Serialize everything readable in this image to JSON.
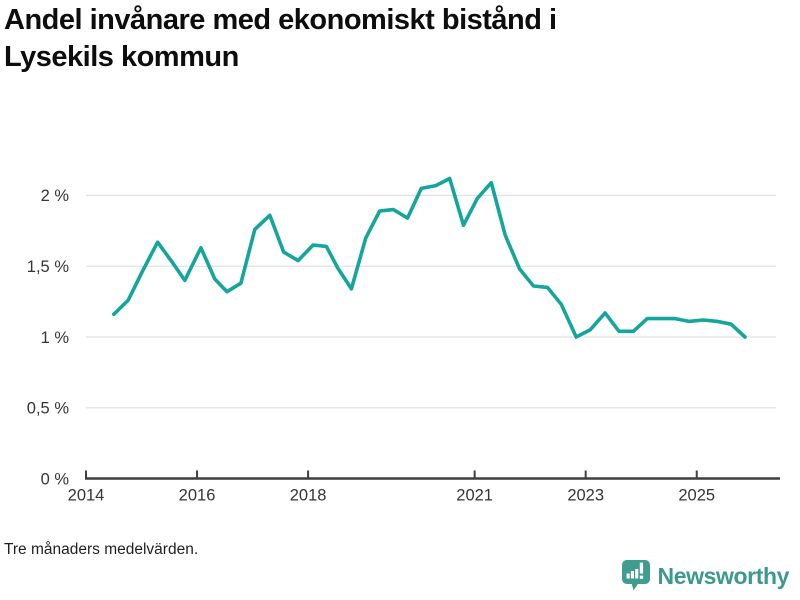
{
  "page": {
    "title": "Andel invånare med ekonomiskt bistånd i Lysekils kommun",
    "footnote": "Tre månaders medelvärden."
  },
  "branding": {
    "name": "Newsworthy",
    "icon": "newsworthy-pin-barchart-icon",
    "color": "#3b9a8c"
  },
  "colors": {
    "line": "#14a59d",
    "grid": "#e2e2e2",
    "axis": "#3f3f3f",
    "tick_text": "#353535",
    "title_text": "#0d0d0d"
  },
  "chart_data": {
    "type": "line",
    "title": "Andel invånare med ekonomiskt bistånd i Lysekils kommun",
    "xlabel": "",
    "ylabel": "",
    "legend": "none",
    "grid": true,
    "xlim": [
      2014,
      2026.5
    ],
    "ylim": [
      0,
      2.3
    ],
    "x_tick_values": [
      2014,
      2016,
      2018,
      2021,
      2023,
      2025
    ],
    "x_tick_labels": [
      "2014",
      "2016",
      "2018",
      "2021",
      "2023",
      "2025"
    ],
    "y_tick_values": [
      0,
      0.5,
      1,
      1.5,
      2
    ],
    "y_tick_labels": [
      "0 %",
      "0,5 %",
      "1 %",
      "1,5 %",
      "2 %"
    ],
    "series": [
      {
        "name": "Andel invånare med ekonomiskt bistånd",
        "color": "#14a59d",
        "points": [
          [
            2014.5,
            1.16
          ],
          [
            2014.76,
            1.26
          ],
          [
            2015.01,
            1.46
          ],
          [
            2015.29,
            1.67
          ],
          [
            2015.55,
            1.53
          ],
          [
            2015.78,
            1.4
          ],
          [
            2016.07,
            1.63
          ],
          [
            2016.32,
            1.41
          ],
          [
            2016.54,
            1.32
          ],
          [
            2016.79,
            1.38
          ],
          [
            2017.04,
            1.76
          ],
          [
            2017.31,
            1.86
          ],
          [
            2017.56,
            1.6
          ],
          [
            2017.82,
            1.54
          ],
          [
            2018.09,
            1.65
          ],
          [
            2018.33,
            1.64
          ],
          [
            2018.53,
            1.49
          ],
          [
            2018.78,
            1.34
          ],
          [
            2019.04,
            1.7
          ],
          [
            2019.29,
            1.89
          ],
          [
            2019.54,
            1.9
          ],
          [
            2019.79,
            1.84
          ],
          [
            2020.04,
            2.05
          ],
          [
            2020.3,
            2.07
          ],
          [
            2020.55,
            2.12
          ],
          [
            2020.8,
            1.79
          ],
          [
            2021.05,
            1.98
          ],
          [
            2021.3,
            2.09
          ],
          [
            2021.55,
            1.72
          ],
          [
            2021.81,
            1.48
          ],
          [
            2022.06,
            1.36
          ],
          [
            2022.31,
            1.35
          ],
          [
            2022.56,
            1.23
          ],
          [
            2022.83,
            1.0
          ],
          [
            2023.08,
            1.05
          ],
          [
            2023.35,
            1.17
          ],
          [
            2023.6,
            1.04
          ],
          [
            2023.86,
            1.04
          ],
          [
            2024.11,
            1.13
          ],
          [
            2024.36,
            1.13
          ],
          [
            2024.61,
            1.13
          ],
          [
            2024.86,
            1.11
          ],
          [
            2025.12,
            1.12
          ],
          [
            2025.37,
            1.11
          ],
          [
            2025.62,
            1.09
          ],
          [
            2025.87,
            1.0
          ]
        ]
      }
    ]
  }
}
